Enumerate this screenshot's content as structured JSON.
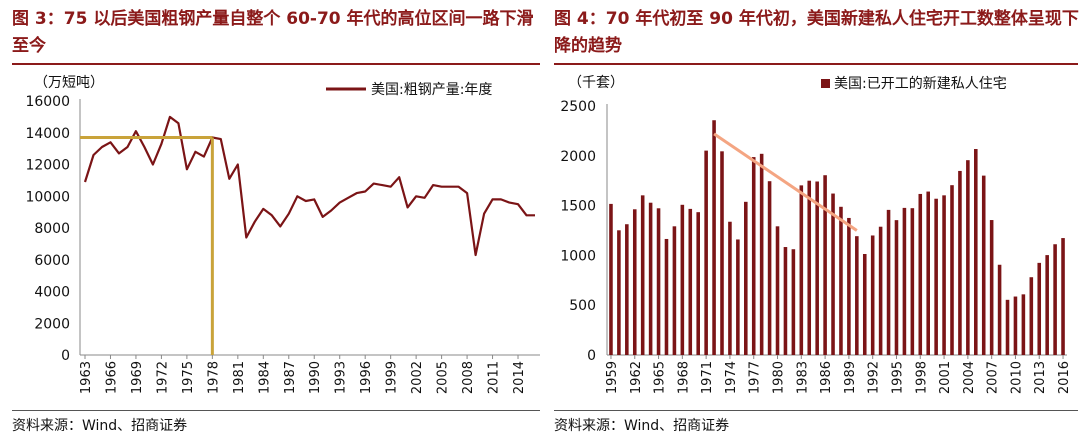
{
  "left": {
    "title": "图 3：75 以后美国粗钢产量自整个 60-70 年代的高位区间一路下滑至今",
    "source": "资料来源：Wind、招商证券"
  },
  "right": {
    "title": "图 4：70 年代初至 90 年代初，美国新建私人住宅开工数整体呈现下降的趋势",
    "source": "资料来源：Wind、招商证券"
  },
  "chart_data": [
    {
      "type": "line",
      "unit_label": "（万短吨）",
      "series": [
        {
          "name": "美国:粗钢产量:年度",
          "color": "#7b1416",
          "x": [
            1963,
            1964,
            1965,
            1966,
            1967,
            1968,
            1969,
            1970,
            1971,
            1972,
            1973,
            1974,
            1975,
            1976,
            1977,
            1978,
            1979,
            1980,
            1981,
            1982,
            1983,
            1984,
            1985,
            1986,
            1987,
            1988,
            1989,
            1990,
            1991,
            1992,
            1993,
            1994,
            1995,
            1996,
            1997,
            1998,
            1999,
            2000,
            2001,
            2002,
            2003,
            2004,
            2005,
            2006,
            2007,
            2008,
            2009,
            2010,
            2011,
            2012,
            2013,
            2014,
            2015,
            2016
          ],
          "values": [
            10900,
            12600,
            13100,
            13400,
            12700,
            13100,
            14100,
            13100,
            12000,
            13300,
            15000,
            14600,
            11700,
            12800,
            12500,
            13700,
            13600,
            11100,
            12000,
            7400,
            8400,
            9200,
            8800,
            8100,
            8900,
            10000,
            9700,
            9800,
            8700,
            9100,
            9600,
            9900,
            10200,
            10300,
            10800,
            10700,
            10600,
            11200,
            9300,
            10000,
            9900,
            10700,
            10600,
            10600,
            10600,
            10200,
            6300,
            8900,
            9800,
            9800,
            9600,
            9500,
            8800,
            8800
          ]
        }
      ],
      "xticks": [
        "1963",
        "1966",
        "1969",
        "1972",
        "1975",
        "1978",
        "1981",
        "1984",
        "1987",
        "1990",
        "1993",
        "1996",
        "1999",
        "2002",
        "2005",
        "2008",
        "2011",
        "2014"
      ],
      "ylim": [
        0,
        16000
      ],
      "yticks": [
        0,
        2000,
        4000,
        6000,
        8000,
        10000,
        12000,
        14000,
        16000
      ],
      "annotation": {
        "type": "crosshair",
        "x": 1978,
        "y": 13700,
        "color": "#c9a33a"
      },
      "legend": "top-right"
    },
    {
      "type": "bar",
      "unit_label": "（千套）",
      "series": [
        {
          "name": "美国:已开工的新建私人住宅",
          "color": "#7b1416",
          "x": [
            1959,
            1960,
            1961,
            1962,
            1963,
            1964,
            1965,
            1966,
            1967,
            1968,
            1969,
            1970,
            1971,
            1972,
            1973,
            1974,
            1975,
            1976,
            1977,
            1978,
            1979,
            1980,
            1981,
            1982,
            1983,
            1984,
            1985,
            1986,
            1987,
            1988,
            1989,
            1990,
            1991,
            1992,
            1993,
            1994,
            1995,
            1996,
            1997,
            1998,
            1999,
            2000,
            2001,
            2002,
            2003,
            2004,
            2005,
            2006,
            2007,
            2008,
            2009,
            2010,
            2011,
            2012,
            2013,
            2014,
            2015,
            2016
          ],
          "values": [
            1517,
            1252,
            1313,
            1463,
            1603,
            1529,
            1473,
            1165,
            1292,
            1508,
            1467,
            1434,
            2052,
            2357,
            2045,
            1338,
            1160,
            1538,
            1987,
            2020,
            1745,
            1292,
            1084,
            1062,
            1703,
            1750,
            1742,
            1805,
            1621,
            1488,
            1376,
            1193,
            1014,
            1200,
            1288,
            1457,
            1354,
            1477,
            1474,
            1617,
            1641,
            1569,
            1603,
            1705,
            1848,
            1956,
            2068,
            1801,
            1355,
            906,
            554,
            587,
            609,
            781,
            925,
            1003,
            1112,
            1174
          ]
        }
      ],
      "xticks": [
        "1959",
        "1962",
        "1965",
        "1968",
        "1971",
        "1974",
        "1977",
        "1980",
        "1983",
        "1986",
        "1989",
        "1992",
        "1995",
        "1998",
        "2001",
        "2004",
        "2007",
        "2010",
        "2013",
        "2016"
      ],
      "ylim": [
        0,
        2500
      ],
      "yticks": [
        0,
        500,
        1000,
        1500,
        2000,
        2500
      ],
      "trendline": {
        "x0": 1972,
        "y0": 2220,
        "x1": 1990,
        "y1": 1250,
        "color": "#f4a582"
      },
      "legend": "top-right"
    }
  ]
}
